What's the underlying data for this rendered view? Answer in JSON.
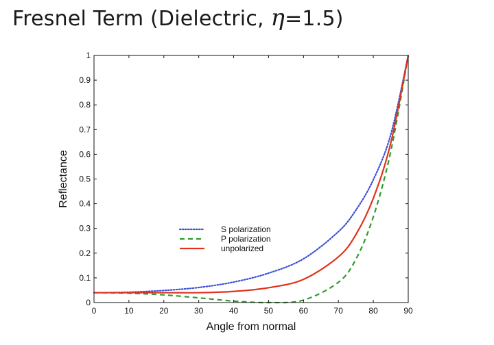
{
  "slide": {
    "title_prefix": "Fresnel Term (Dielectric, ",
    "title_symbol": "η",
    "title_suffix": "=1.5)"
  },
  "chart_data": {
    "type": "line",
    "title": "Fresnel Term (Dielectric, η=1.5)",
    "xlabel": "Angle from normal",
    "ylabel": "Reflectance",
    "xlim": [
      0,
      90
    ],
    "ylim": [
      0,
      1
    ],
    "xticks": [
      0,
      10,
      20,
      30,
      40,
      50,
      60,
      70,
      80,
      90
    ],
    "yticks": [
      0,
      0.1,
      0.2,
      0.3,
      0.4,
      0.5,
      0.6,
      0.7,
      0.8,
      0.9,
      1
    ],
    "ytick_labels": [
      "0",
      "0.1",
      "0.2",
      "0.3",
      "0.4",
      "0.5",
      "0.6",
      "0.7",
      "0.8",
      "0.9",
      "1"
    ],
    "grid": false,
    "legend_position": "center",
    "x": [
      0,
      10,
      20,
      30,
      40,
      50,
      60,
      70,
      75,
      80,
      85,
      90
    ],
    "series": [
      {
        "name": "S polarization",
        "color": "#3a4fd8",
        "style": "dotted",
        "values": [
          0.04,
          0.042,
          0.049,
          0.061,
          0.083,
          0.119,
          0.177,
          0.287,
          0.374,
          0.497,
          0.68,
          1.0
        ]
      },
      {
        "name": "P polarization",
        "color": "#2e9a2e",
        "style": "dashed",
        "values": [
          0.04,
          0.038,
          0.031,
          0.019,
          0.006,
          0.0,
          0.01,
          0.082,
          0.175,
          0.347,
          0.612,
          1.0
        ]
      },
      {
        "name": "unpolarized",
        "color": "#e0321c",
        "style": "solid",
        "values": [
          0.04,
          0.04,
          0.04,
          0.04,
          0.045,
          0.06,
          0.094,
          0.185,
          0.275,
          0.422,
          0.646,
          1.0
        ]
      }
    ]
  }
}
